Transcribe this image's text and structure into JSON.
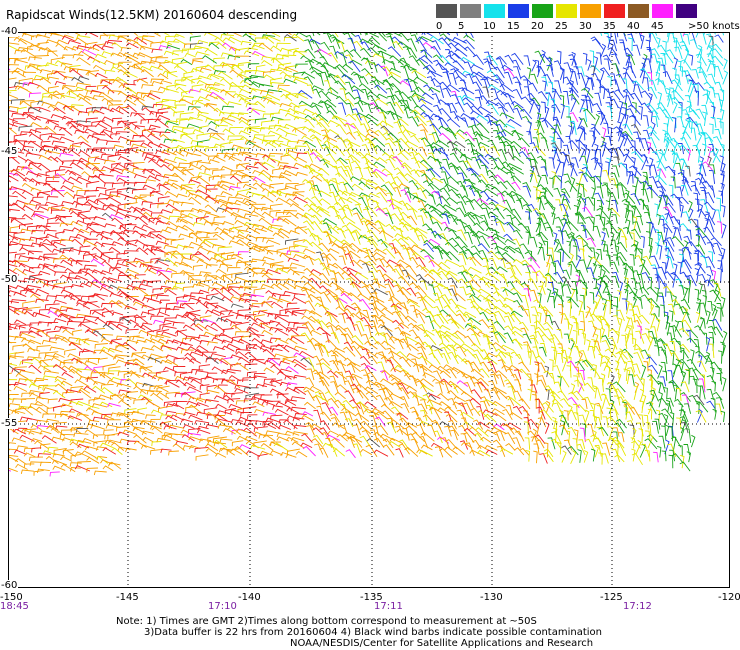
{
  "title": "Rapidscat Winds(12.5KM) 20160604 descending",
  "legend": {
    "labels": [
      "0",
      "5",
      "10",
      "15",
      "20",
      "25",
      "30",
      "35",
      "40",
      "45",
      ">50 knots"
    ],
    "colors": [
      "#555555",
      "#7f7f7f",
      "#15e2ec",
      "#1a3de8",
      "#18a418",
      "#e6e600",
      "#f8a000",
      "#f02020",
      "#8c5a24",
      "#ff1fff",
      "#400080"
    ]
  },
  "map": {
    "lat_labels": [
      "-40",
      "-45",
      "-50",
      "-55",
      "-60"
    ],
    "lon_labels": [
      "-150",
      "-145",
      "-140",
      "-135",
      "-130",
      "-125",
      "-120"
    ],
    "times": [
      "18:45",
      "17:10",
      "17:11",
      "17:12"
    ]
  },
  "notes": {
    "line1": "Note: 1) Times are GMT 2)Times along bottom correspond to measurement at ~50S",
    "line2": "3)Data buffer is 22 hrs from 20160604 4) Black wind barbs indicate possible contamination",
    "line3": "NOAA/NESDIS/Center for Satellite Applications and Research"
  }
}
